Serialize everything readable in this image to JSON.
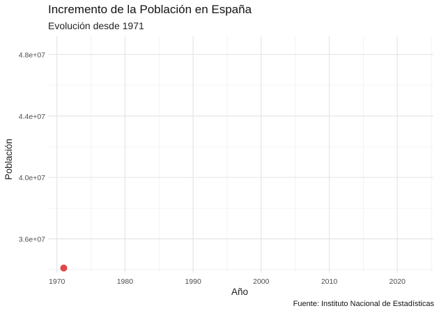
{
  "chart_data": {
    "type": "scatter",
    "title": "Incremento de la Población en España",
    "subtitle": "Evolución desde 1971",
    "xlabel": "Año",
    "ylabel": "Población",
    "caption": "Fuente: Instituto Nacional de Estadísticas",
    "xlim": [
      1968.7,
      2025.3
    ],
    "ylim": [
      33800000,
      49200000
    ],
    "x_ticks": [
      1970,
      1980,
      1990,
      2000,
      2010,
      2020
    ],
    "x_tick_labels": [
      "1970",
      "1980",
      "1990",
      "2000",
      "2010",
      "2020"
    ],
    "y_ticks": [
      36000000,
      40000000,
      44000000,
      48000000
    ],
    "y_tick_labels": [
      "3.6e+07",
      "4.0e+07",
      "4.4e+07",
      "4.8e+07"
    ],
    "grid": true,
    "series": [
      {
        "color": "#e04848",
        "points": [
          {
            "x": 1971,
            "y": 34100000
          }
        ]
      }
    ]
  }
}
